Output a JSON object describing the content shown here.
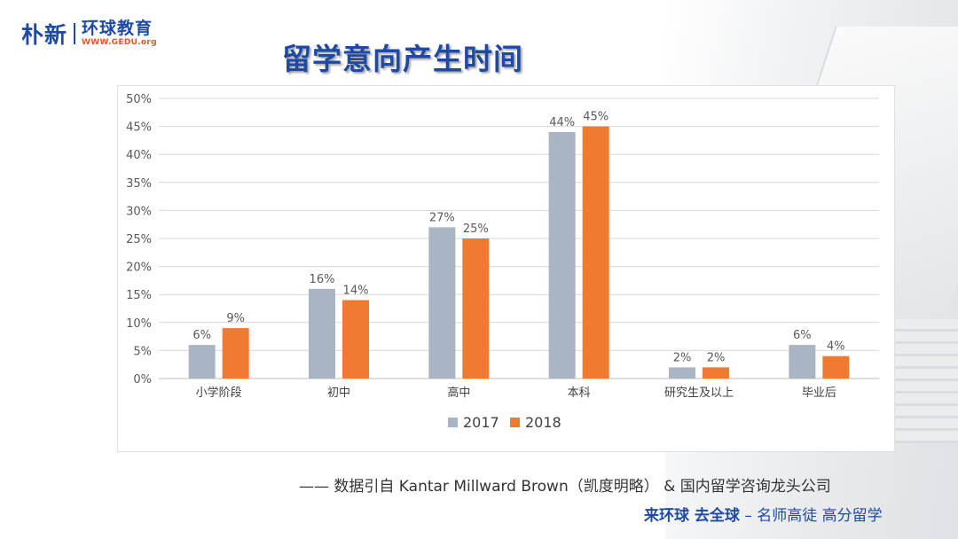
{
  "logo": {
    "brand_cn": "朴新",
    "org_cn": "环球教育",
    "url": "WWW.GEDU.org"
  },
  "slide": {
    "title": "留学意向产生时间",
    "source": "—— 数据引自 Kantar Millward Brown（凯度明略） & 国内留学咨询龙头公司",
    "slogan_main": "来环球  去全球",
    "slogan_sub": " – 名师高徒  高分留学"
  },
  "colors": {
    "series_2017": "#aab5c4",
    "series_2018": "#ee7b30",
    "title": "#1e4aa3"
  },
  "chart_data": {
    "type": "bar",
    "categories": [
      "小学阶段",
      "初中",
      "高中",
      "本科",
      "研究生及以上",
      "毕业后"
    ],
    "series": [
      {
        "name": "2017",
        "values": [
          6,
          16,
          27,
          44,
          2,
          6
        ],
        "labels": [
          "6%",
          "16%",
          "27%",
          "44%",
          "2%",
          "6%"
        ]
      },
      {
        "name": "2018",
        "values": [
          9,
          14,
          25,
          45,
          2,
          4
        ],
        "labels": [
          "9%",
          "14%",
          "25%",
          "45%",
          "2%",
          "4%"
        ]
      }
    ],
    "ylim": [
      0,
      50
    ],
    "yticks": [
      "0%",
      "5%",
      "10%",
      "15%",
      "20%",
      "25%",
      "30%",
      "35%",
      "40%",
      "45%",
      "50%"
    ],
    "grid": true,
    "legend": "bottom-center"
  }
}
